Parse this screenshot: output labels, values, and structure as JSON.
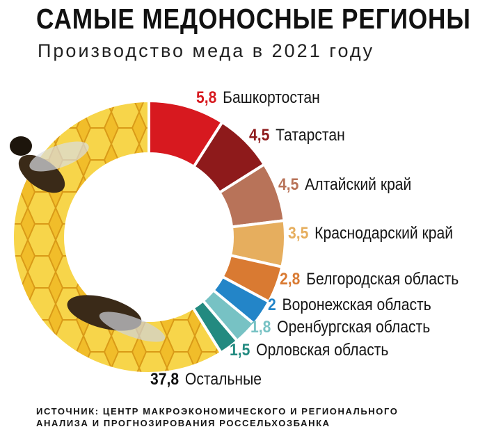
{
  "header": {
    "title": "САМЫЕ МЕДОНОСНЫЕ РЕГИОНЫ",
    "subtitle": "Производство меда в 2021 году"
  },
  "chart_data": {
    "type": "pie",
    "variant": "donut",
    "start": "top, clockwise",
    "categories": [
      "Башкортостан",
      "Татарстан",
      "Алтайский край",
      "Краснодарский край",
      "Белгородская область",
      "Воронежская область",
      "Оренбургская область",
      "Орловская область",
      "Остальные"
    ],
    "values": [
      5.8,
      4.5,
      4.5,
      3.5,
      2.8,
      2,
      1.8,
      1.5,
      37.8
    ],
    "value_labels": [
      "5,8",
      "4,5",
      "4,5",
      "3,5",
      "2,8",
      "2",
      "1,8",
      "1,5",
      "37,8"
    ],
    "colors": [
      "#d7191f",
      "#8e1a1b",
      "#b87359",
      "#e6ae5e",
      "#d97a32",
      "#2385c8",
      "#77c2c4",
      "#238a80",
      "#f2c230"
    ],
    "others_fill": "honeycomb photo with bees"
  },
  "source": {
    "line1": "ИСТОЧНИК: ЦЕНТР МАКРОЭКОНОМИЧЕСКОГО И РЕГИОНАЛЬНОГО",
    "line2": "АНАЛИЗА И ПРОГНОЗИРОВАНИЯ РОССЕЛЬХОЗБАНКА"
  }
}
